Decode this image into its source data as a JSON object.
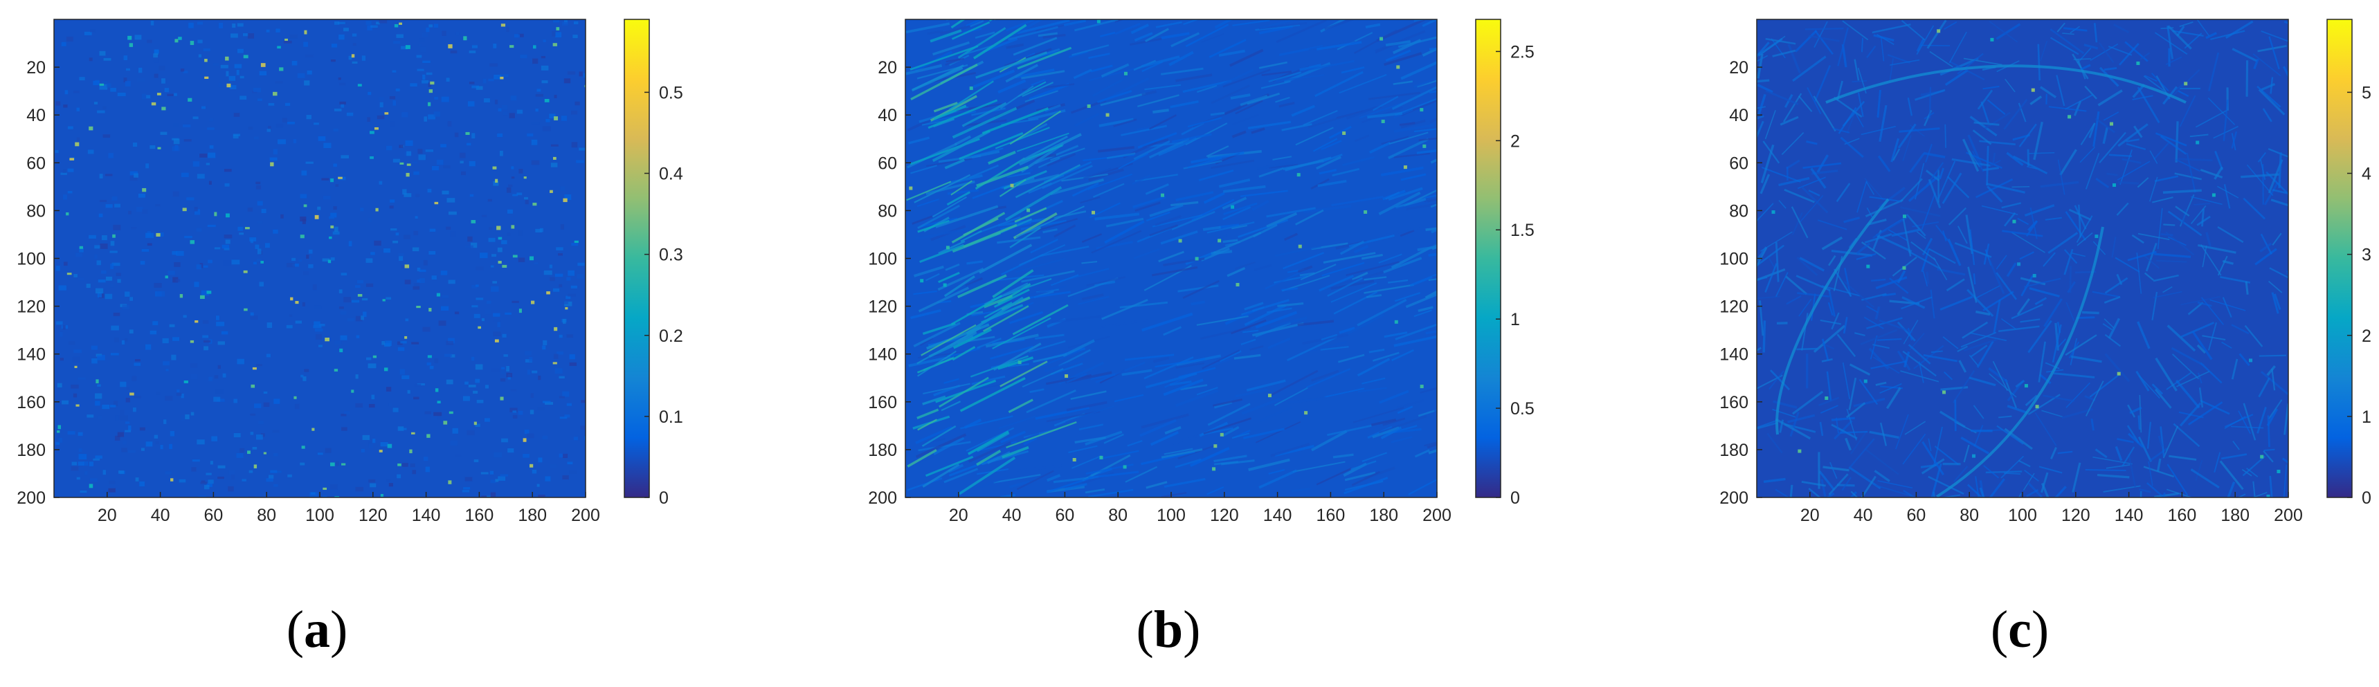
{
  "chart_data": [
    {
      "type": "heatmap",
      "panel_label": "a",
      "colormap": "parula",
      "x_ticks": [
        20,
        40,
        60,
        80,
        100,
        120,
        140,
        160,
        180,
        200
      ],
      "y_ticks": [
        20,
        40,
        60,
        80,
        100,
        120,
        140,
        160,
        180,
        200
      ],
      "xlim": [
        0,
        200
      ],
      "ylim": [
        200,
        0
      ],
      "y_axis_direction": "reversed",
      "colorbar": {
        "ticks": [
          0,
          0.1,
          0.2,
          0.3,
          0.4,
          0.5
        ],
        "range": [
          0,
          0.59
        ]
      },
      "background_value": 0.05,
      "texture": "uniform speckle"
    },
    {
      "type": "heatmap",
      "panel_label": "b",
      "colormap": "parula",
      "x_ticks": [
        20,
        40,
        60,
        80,
        100,
        120,
        140,
        160,
        180,
        200
      ],
      "y_ticks": [
        20,
        40,
        60,
        80,
        100,
        120,
        140,
        160,
        180,
        200
      ],
      "xlim": [
        0,
        200
      ],
      "ylim": [
        200,
        0
      ],
      "y_axis_direction": "reversed",
      "colorbar": {
        "ticks": [
          0,
          0.5,
          1,
          1.5,
          2,
          2.5
        ],
        "range": [
          0,
          2.68
        ]
      },
      "background_value": 0.25,
      "texture": "streaky, brighter toward left edge"
    },
    {
      "type": "heatmap",
      "panel_label": "c",
      "colormap": "parula",
      "x_ticks": [
        20,
        40,
        60,
        80,
        100,
        120,
        140,
        160,
        180,
        200
      ],
      "y_ticks": [
        20,
        40,
        60,
        80,
        100,
        120,
        140,
        160,
        180,
        200
      ],
      "xlim": [
        0,
        200
      ],
      "ylim": [
        200,
        0
      ],
      "y_axis_direction": "reversed",
      "colorbar": {
        "ticks": [
          0,
          1,
          2,
          3,
          4,
          5
        ],
        "range": [
          0,
          5.9
        ]
      },
      "background_value": 0.4,
      "texture": "fibrous texture with curved bright ridges"
    }
  ],
  "colors": {
    "parula": [
      "#352A87",
      "#0363E1",
      "#1485D4",
      "#06A7C6",
      "#38B99E",
      "#92BF73",
      "#D9BA56",
      "#FCCE2E",
      "#F9FB0E"
    ],
    "axis": "#262626"
  }
}
